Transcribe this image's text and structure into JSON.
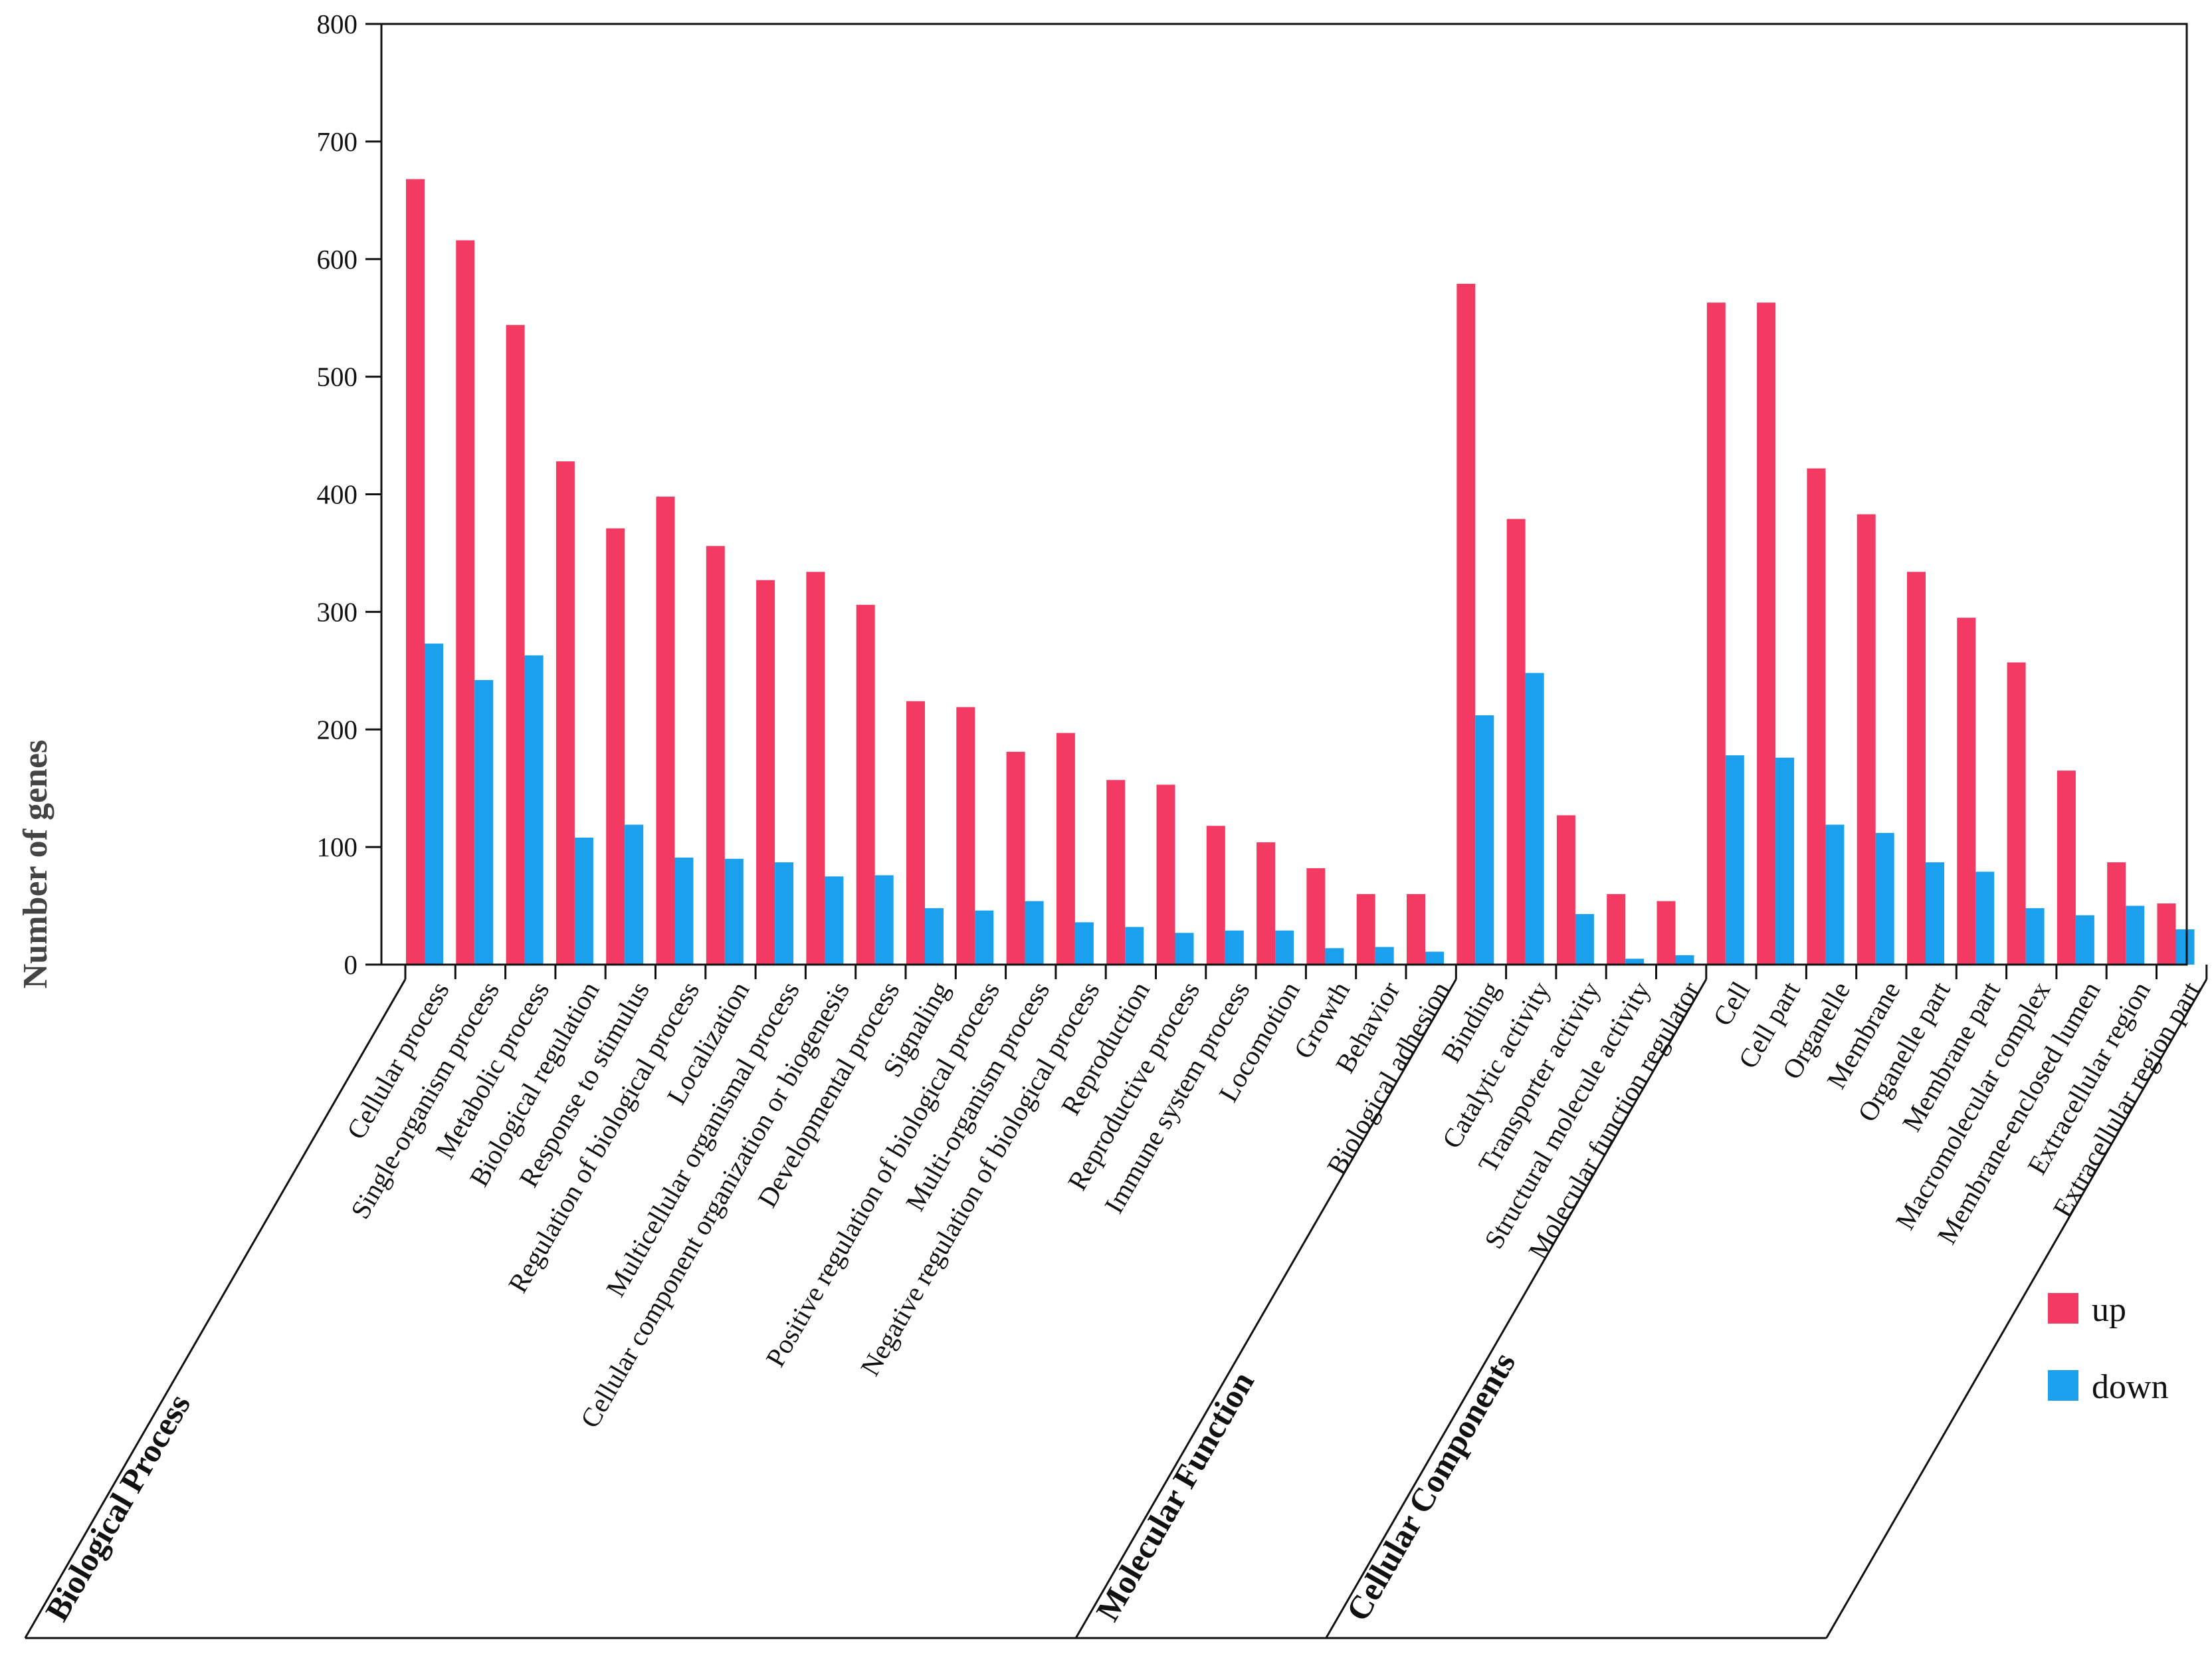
{
  "chart_data": {
    "type": "bar",
    "title": "",
    "xlabel": "",
    "ylabel": "Number of genes",
    "ylim": [
      0,
      800
    ],
    "yticks": [
      0,
      100,
      200,
      300,
      400,
      500,
      600,
      700,
      800
    ],
    "grid": false,
    "legend_position": "right",
    "colors": {
      "up": "#f23a62",
      "down": "#1ba0ee"
    },
    "categories": [
      "Cellular process",
      "Single-organism process",
      "Metabolic process",
      "Biological regulation",
      "Response to stimulus",
      "Regulation of biological process",
      "Localization",
      "Multicellular organismal process",
      "Cellular component organization or biogenesis",
      "Developmental process",
      "Signaling",
      "Positive regulation of biological process",
      "Multi-organism process",
      "Negative regulation of biological process",
      "Reproduction",
      "Reproductive process",
      "Immune system process",
      "Locomotion",
      "Growth",
      "Behavior",
      "Biological adhesion",
      "Binding",
      "Catalytic activity",
      "Transporter activity",
      "Structural molecule activity",
      "Molecular function regulator",
      "Cell",
      "Cell part",
      "Organelle",
      "Membrane",
      "Organelle part",
      "Membrane part",
      "Macromolecular complex",
      "Membrane-enclosed lumen",
      "Extracellular region",
      "Extracellular region part"
    ],
    "series": [
      {
        "name": "up",
        "values": [
          668,
          616,
          544,
          428,
          371,
          398,
          356,
          327,
          334,
          306,
          224,
          219,
          181,
          197,
          157,
          153,
          118,
          104,
          82,
          60,
          60,
          579,
          379,
          127,
          60,
          54,
          563,
          563,
          422,
          383,
          334,
          295,
          257,
          165,
          87,
          52
        ]
      },
      {
        "name": "down",
        "values": [
          273,
          242,
          263,
          108,
          119,
          91,
          90,
          87,
          75,
          76,
          48,
          46,
          54,
          36,
          32,
          27,
          29,
          29,
          14,
          15,
          11,
          212,
          248,
          43,
          5,
          8,
          178,
          176,
          119,
          112,
          87,
          79,
          48,
          42,
          50,
          30
        ]
      }
    ],
    "groups": [
      {
        "name": "Biological Process",
        "start": 0,
        "end": 20
      },
      {
        "name": "Molecular Function",
        "start": 21,
        "end": 25
      },
      {
        "name": "Cellular Components",
        "start": 26,
        "end": 35
      }
    ],
    "legend": [
      "up",
      "down"
    ]
  }
}
